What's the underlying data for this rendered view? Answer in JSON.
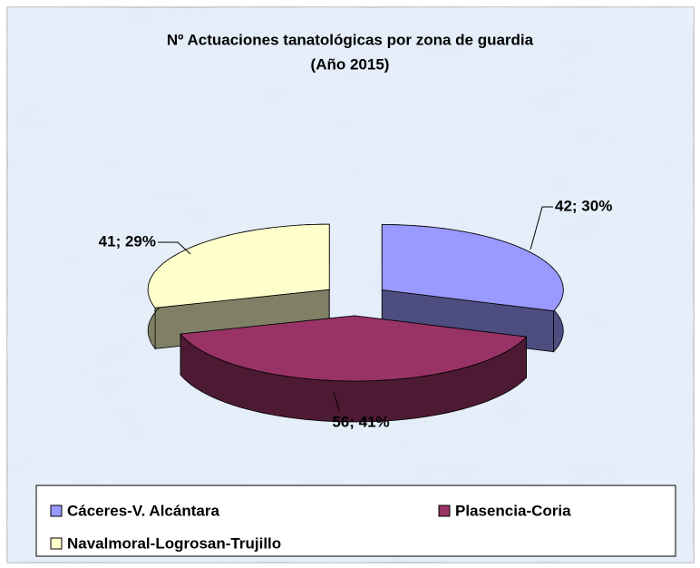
{
  "chart_data": {
    "type": "pie3d",
    "title": "Nº Actuaciones tanatológicas por zona de guardia",
    "subtitle": "(Año 2015)",
    "categories": [
      "Cáceres-V. Alcántara",
      "Plasencia-Coria",
      "Navalmoral-Logrosan-Trujillo"
    ],
    "values": [
      42,
      56,
      41
    ],
    "value_labels": [
      "42; 30%",
      "56; 41%",
      "41; 29%"
    ],
    "colors": [
      "#9999ff",
      "#993366",
      "#ffffcc"
    ],
    "legend": "bottom"
  }
}
